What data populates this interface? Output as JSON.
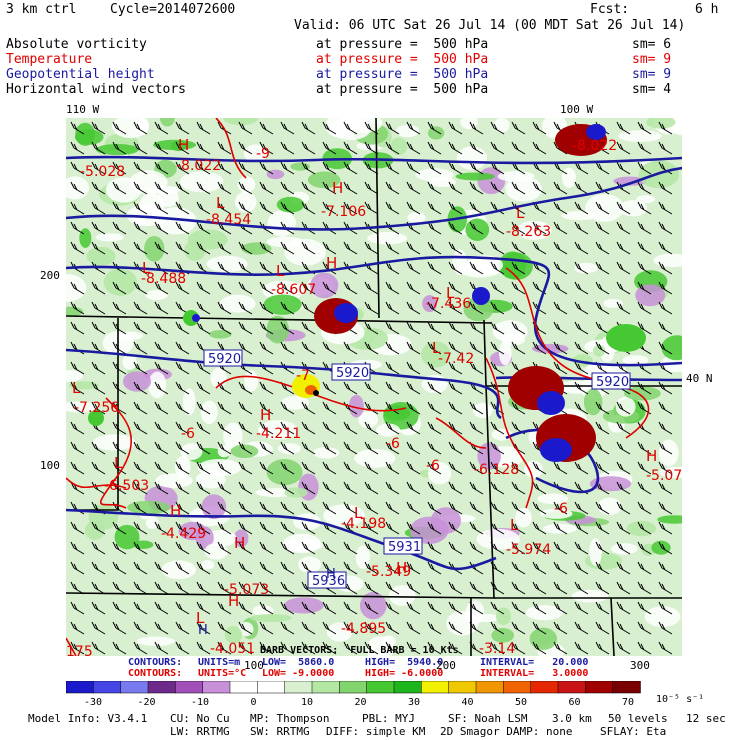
{
  "header": {
    "run": "3 km ctrl",
    "cycle": "Cycle=2014072600",
    "fcst_label": "Fcst:",
    "fcst_value": "6 h",
    "valid": "Valid: 06 UTC Sat 26 Jul 14 (00 MDT Sat 26 Jul 14)"
  },
  "fields": [
    {
      "name": "Absolute vorticity",
      "level": "at pressure =  500 hPa",
      "sm": "sm= 6",
      "color": "#000000"
    },
    {
      "name": "Temperature",
      "level": "at pressure =  500 hPa",
      "sm": "sm= 9",
      "color": "#e00000"
    },
    {
      "name": "Geopotential height",
      "level": "at pressure =  500 hPa",
      "sm": "sm= 9",
      "color": "#1a1aa0"
    },
    {
      "name": "Horizontal wind vectors",
      "level": "at pressure =  500 hPa",
      "sm": "sm= 4",
      "color": "#000000"
    }
  ],
  "axes": {
    "top_left": "110 W",
    "top_right": "100 W",
    "left_200": "200",
    "left_100": "100",
    "bottom_100": "100",
    "bottom_200": "200",
    "bottom_300": "300",
    "right_lat": "40 N"
  },
  "map_labels": {
    "temperature": [
      {
        "text": "-5.028"
      },
      {
        "text": "-8.022"
      },
      {
        "text": "-8.022"
      },
      {
        "text": "-8.454"
      },
      {
        "text": "-7.106"
      },
      {
        "text": "-8.263"
      },
      {
        "text": "-8.488"
      },
      {
        "text": "-8.607"
      },
      {
        "text": "-7.436"
      },
      {
        "text": "-7.42"
      },
      {
        "text": "-7.256"
      },
      {
        "text": "-4.211"
      },
      {
        "text": "-6"
      },
      {
        "text": "-6"
      },
      {
        "text": "-6"
      },
      {
        "text": "-6"
      },
      {
        "text": "-6.128"
      },
      {
        "text": "-5.07"
      },
      {
        "text": "-6.503"
      },
      {
        "text": "-4.429"
      },
      {
        "text": "-4.198"
      },
      {
        "text": "-5.974"
      },
      {
        "text": "-5.349"
      },
      {
        "text": "-5.073"
      },
      {
        "text": "-4.895"
      },
      {
        "text": "-4.051"
      },
      {
        "text": "-3.14"
      },
      {
        "text": "175"
      },
      {
        "text": "-7"
      },
      {
        "text": "-9"
      }
    ],
    "highs_lows": [
      {
        "text": "H"
      },
      {
        "text": "L"
      },
      {
        "text": "H"
      },
      {
        "text": "L"
      },
      {
        "text": "L"
      },
      {
        "text": "L"
      },
      {
        "text": "L"
      },
      {
        "text": "L"
      },
      {
        "text": "H"
      },
      {
        "text": "L"
      },
      {
        "text": "H"
      },
      {
        "text": "L"
      },
      {
        "text": "H"
      },
      {
        "text": "H"
      },
      {
        "text": "L"
      },
      {
        "text": "H"
      },
      {
        "text": "L"
      },
      {
        "text": "L"
      },
      {
        "text": "H"
      },
      {
        "text": "H"
      }
    ],
    "height_boxes": [
      "5920",
      "5920",
      "5920",
      "5931",
      "5936"
    ],
    "height_box_highs": [
      "H",
      "H"
    ]
  },
  "contour_info": {
    "banner": "BARB VECTORS:  FULL BARB = 10 Kts",
    "row1": {
      "label": "CONTOURS:",
      "units": "UNITS=m",
      "low": "LOW=  5860.0",
      "high": "HIGH=  5940.0",
      "interval": "INTERVAL=   20.000"
    },
    "row2": {
      "label": "CONTOURS:",
      "units": "UNITS=°C",
      "low": "LOW= -9.0000",
      "high": "HIGH= -6.0000",
      "interval": "INTERVAL=   3.0000"
    }
  },
  "colorbar": {
    "colors": [
      "#1a1acc",
      "#4646e6",
      "#7a7af0",
      "#6e2a8a",
      "#a050b8",
      "#c890d8",
      "#ffffff",
      "#ffffff",
      "#d8f0d0",
      "#b4e6a4",
      "#82d46e",
      "#46c832",
      "#1eb41e",
      "#f0f000",
      "#f0c800",
      "#f09600",
      "#f06400",
      "#e62800",
      "#c81414",
      "#a00000",
      "#780000"
    ],
    "labels": [
      "-30",
      "-20",
      "-10",
      "0",
      "10",
      "20",
      "30",
      "40",
      "50",
      "60",
      "70"
    ],
    "units": "10⁻⁵ s⁻¹"
  },
  "footer": {
    "line1": [
      "Model Info: V3.4.1",
      "CU: No Cu",
      "MP: Thompson",
      "PBL: MYJ",
      "SF: Noah LSM",
      "3.0 km",
      "50 levels",
      "12 sec"
    ],
    "line2": [
      "LW: RRTMG",
      "SW: RRTMG",
      "DIFF: simple KM",
      "2D Smagor DAMP: none",
      "SFLAY: Eta"
    ]
  }
}
